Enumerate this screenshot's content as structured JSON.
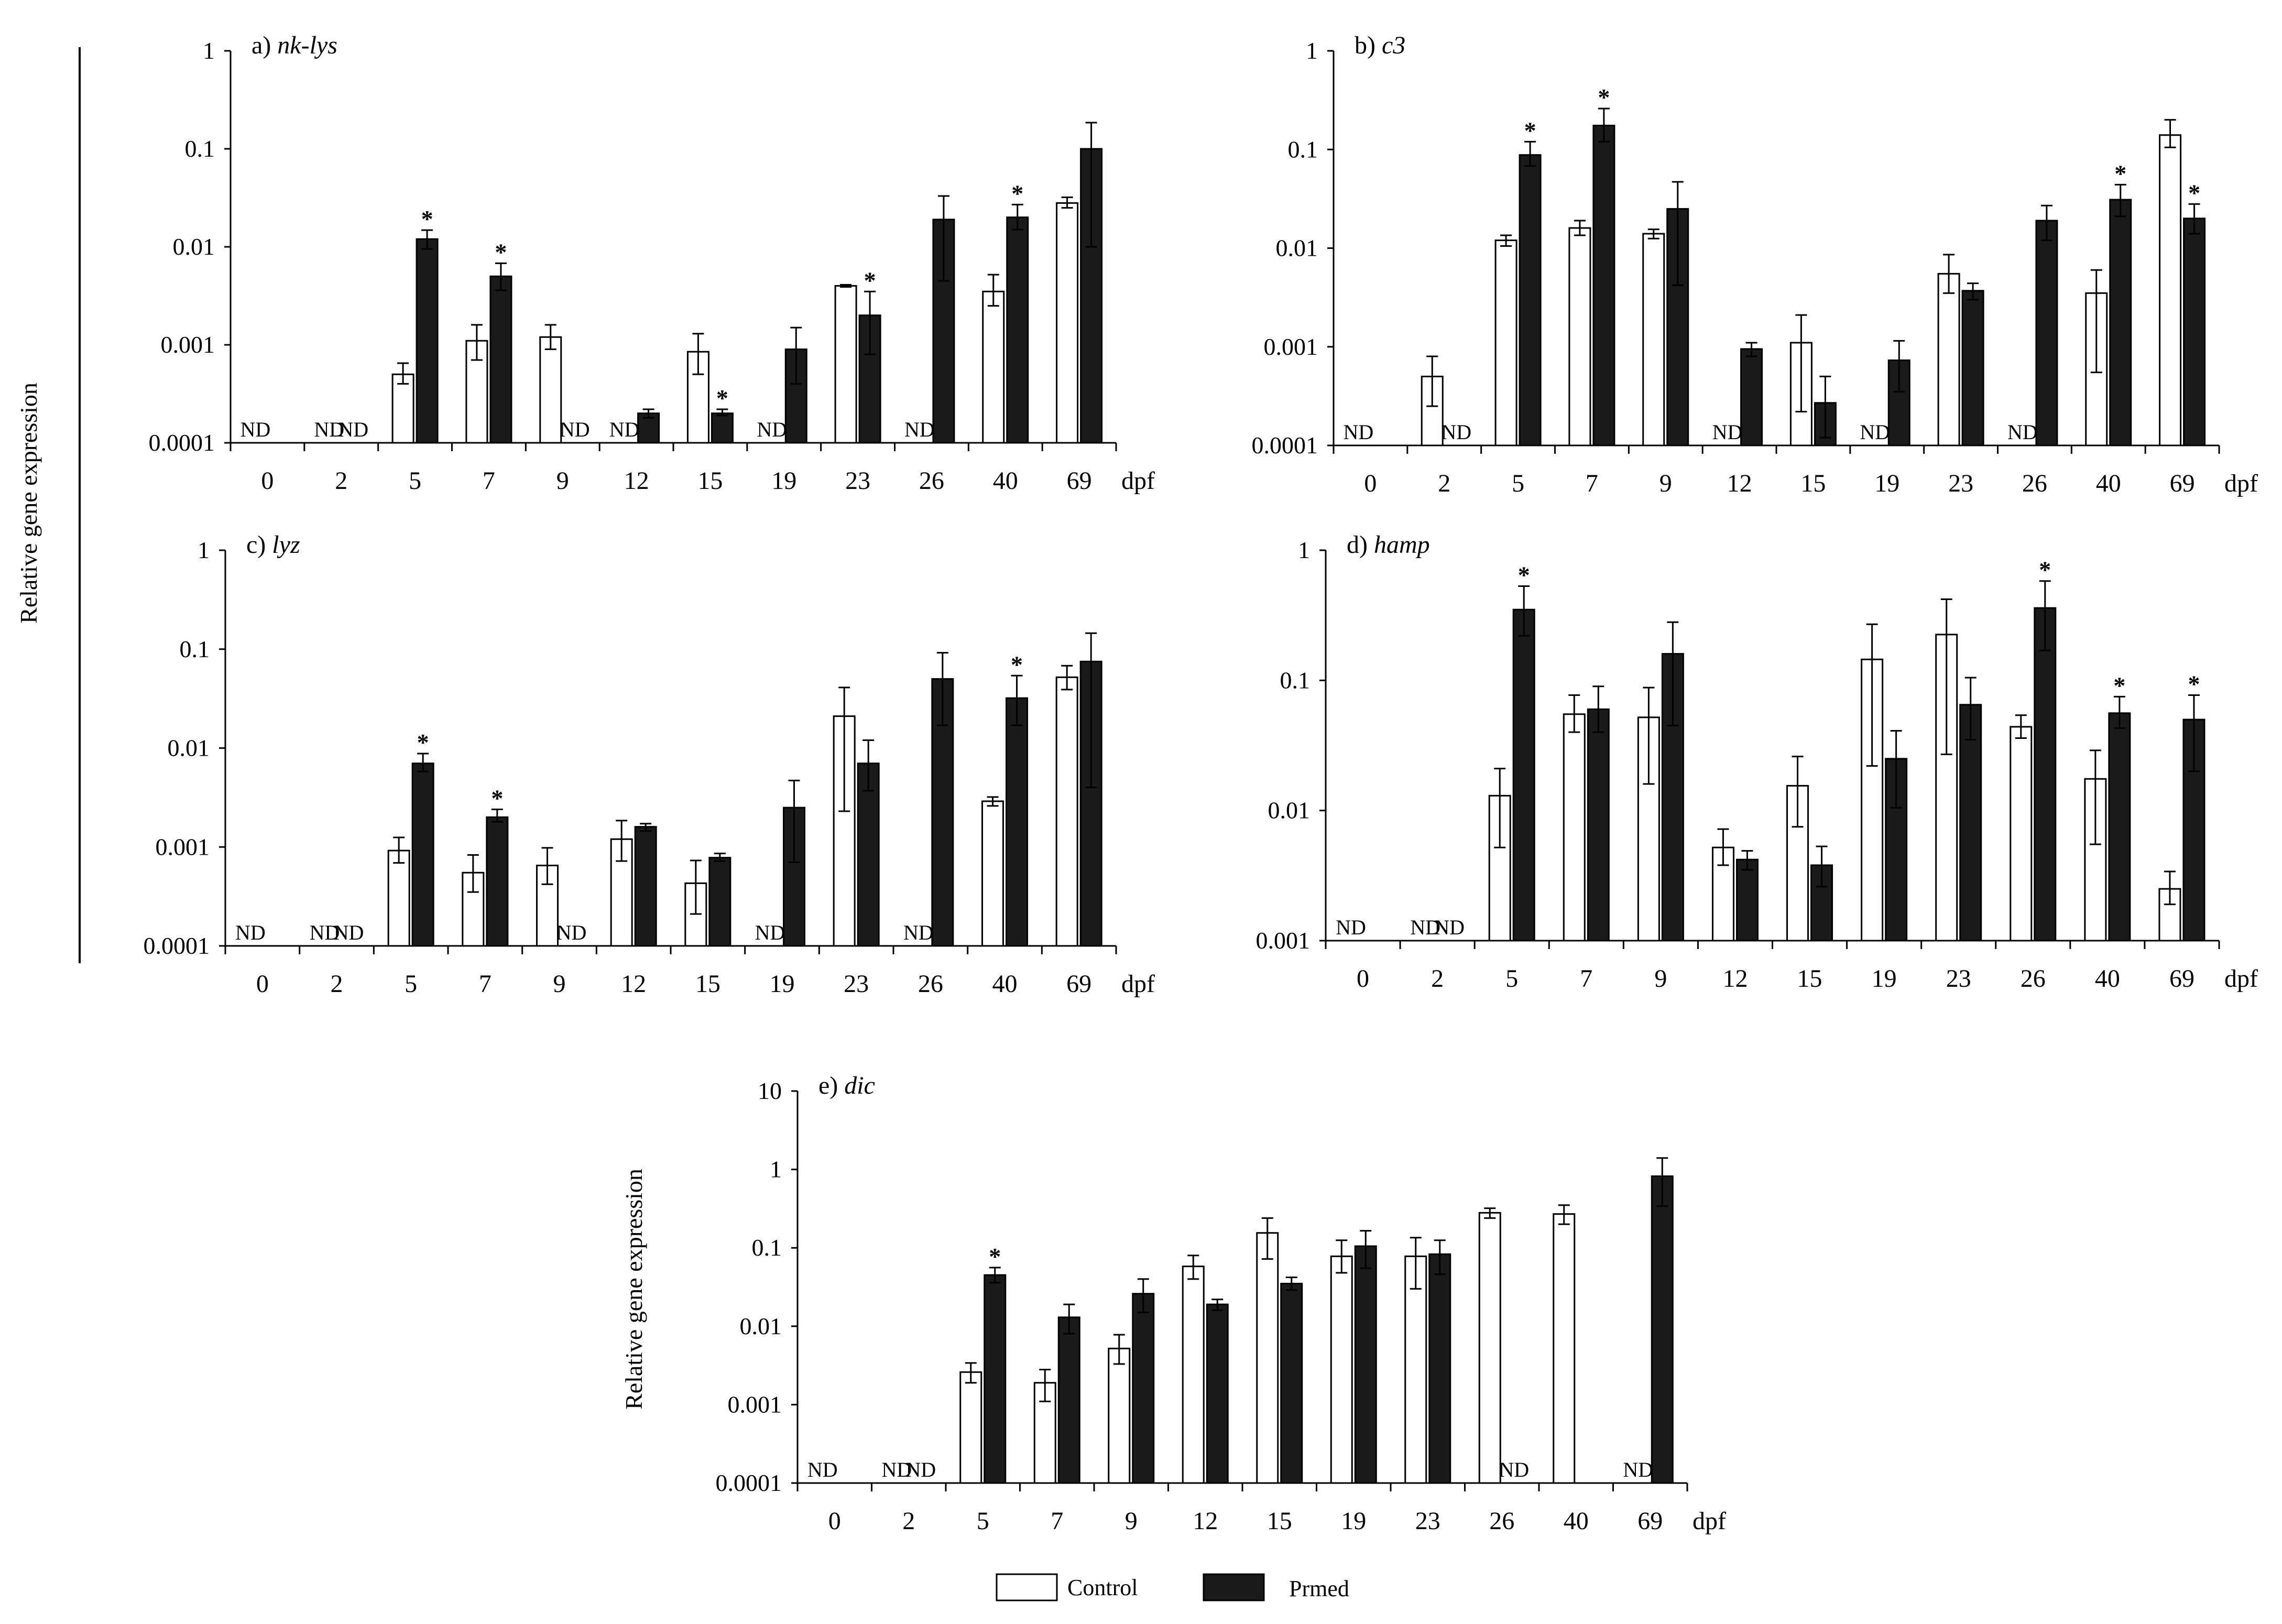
{
  "figure": {
    "y_axis_label": "Relative  gene  expression",
    "x_unit": "dpf",
    "not_detected": "ND",
    "sig_marker": "*",
    "legend": [
      {
        "label": "Control",
        "fill": "#ffffff"
      },
      {
        "label": "Prmed",
        "fill": "#1a1a1a"
      }
    ]
  },
  "chart_data": [
    {
      "type": "bar",
      "id": "a",
      "title_prefix": "a)",
      "title_gene": "nk-lys",
      "xlabel": "dpf",
      "ylabel": "Relative  gene  expression",
      "yscale": "log",
      "ylim": [
        0.0001,
        1
      ],
      "ytick_labels": [
        "0.0001",
        "0.001",
        "0.01",
        "0.1",
        "1"
      ],
      "categories": [
        "0",
        "2",
        "5",
        "7",
        "9",
        "12",
        "15",
        "19",
        "23",
        "26",
        "40",
        "69"
      ],
      "series": [
        {
          "name": "Control",
          "values": [
            null,
            null,
            0.0005,
            0.0011,
            0.0012,
            null,
            0.00085,
            null,
            0.004,
            null,
            0.0035,
            0.028
          ],
          "err_low": [
            null,
            null,
            0.0004,
            0.0007,
            0.0009,
            null,
            0.0005,
            null,
            0.0039,
            null,
            0.0025,
            0.025
          ],
          "err_high": [
            null,
            null,
            0.00065,
            0.0016,
            0.0016,
            null,
            0.0013,
            null,
            0.0041,
            null,
            0.0052,
            0.032
          ],
          "nd": [
            true,
            true,
            false,
            false,
            false,
            true,
            false,
            true,
            false,
            true,
            false,
            false
          ],
          "sig": [
            false,
            false,
            false,
            false,
            false,
            false,
            false,
            false,
            false,
            false,
            false,
            false
          ]
        },
        {
          "name": "Prmed",
          "values": [
            null,
            null,
            0.012,
            0.005,
            null,
            0.0002,
            0.0002,
            0.0009,
            0.002,
            0.019,
            0.02,
            0.1
          ],
          "err_low": [
            null,
            null,
            0.0095,
            0.0036,
            null,
            0.00018,
            0.00019,
            0.0004,
            0.0008,
            0.0045,
            0.015,
            0.01
          ],
          "err_high": [
            null,
            null,
            0.0148,
            0.0068,
            null,
            0.00022,
            0.00022,
            0.0015,
            0.0035,
            0.033,
            0.027,
            0.185
          ],
          "nd": [
            false,
            true,
            false,
            false,
            true,
            false,
            false,
            false,
            false,
            false,
            false,
            false
          ],
          "sig": [
            false,
            false,
            true,
            true,
            false,
            false,
            true,
            false,
            true,
            false,
            true,
            false
          ]
        }
      ]
    },
    {
      "type": "bar",
      "id": "b",
      "title_prefix": "b)",
      "title_gene": "c3",
      "xlabel": "dpf",
      "ylabel": "",
      "yscale": "log",
      "ylim": [
        0.0001,
        1
      ],
      "ytick_labels": [
        "0.0001",
        "0.001",
        "0.01",
        "0.1",
        "1"
      ],
      "categories": [
        "0",
        "2",
        "5",
        "7",
        "9",
        "12",
        "15",
        "19",
        "23",
        "26",
        "40",
        "69"
      ],
      "series": [
        {
          "name": "Control",
          "values": [
            null,
            0.0005,
            0.012,
            0.016,
            0.014,
            null,
            0.0011,
            null,
            0.0055,
            null,
            0.0035,
            0.14
          ],
          "err_low": [
            null,
            0.00025,
            0.0105,
            0.0135,
            0.0125,
            null,
            0.00022,
            null,
            0.0035,
            null,
            0.00055,
            0.105
          ],
          "err_high": [
            null,
            0.0008,
            0.0135,
            0.019,
            0.0155,
            null,
            0.0021,
            null,
            0.0086,
            null,
            0.006,
            0.2
          ],
          "nd": [
            true,
            false,
            false,
            false,
            false,
            true,
            false,
            true,
            false,
            true,
            false,
            false
          ],
          "sig": [
            false,
            false,
            false,
            false,
            false,
            false,
            false,
            false,
            false,
            false,
            false,
            false
          ]
        },
        {
          "name": "Prmed",
          "values": [
            null,
            null,
            0.088,
            0.175,
            0.025,
            0.00095,
            0.00027,
            0.00073,
            0.0037,
            0.019,
            0.031,
            0.02
          ],
          "err_low": [
            null,
            null,
            0.068,
            0.12,
            0.0042,
            0.0008,
            0.00012,
            0.00035,
            0.003,
            0.012,
            0.021,
            0.014
          ],
          "err_high": [
            null,
            null,
            0.12,
            0.26,
            0.047,
            0.0011,
            0.0005,
            0.00115,
            0.0044,
            0.027,
            0.044,
            0.028
          ],
          "nd": [
            false,
            true,
            false,
            false,
            false,
            false,
            false,
            false,
            false,
            false,
            false,
            false
          ],
          "sig": [
            false,
            false,
            true,
            true,
            false,
            false,
            false,
            false,
            false,
            false,
            true,
            true
          ]
        }
      ]
    },
    {
      "type": "bar",
      "id": "c",
      "title_prefix": "c)",
      "title_gene": "lyz",
      "xlabel": "dpf",
      "ylabel": "",
      "yscale": "log",
      "ylim": [
        0.0001,
        1
      ],
      "ytick_labels": [
        "0.0001",
        "0.001",
        "0.01",
        "0.1",
        "1"
      ],
      "categories": [
        "0",
        "2",
        "5",
        "7",
        "9",
        "12",
        "15",
        "19",
        "23",
        "26",
        "40",
        "69"
      ],
      "series": [
        {
          "name": "Control",
          "values": [
            null,
            null,
            0.00092,
            0.00055,
            0.00065,
            0.0012,
            0.00043,
            null,
            0.021,
            null,
            0.0029,
            0.052
          ],
          "err_low": [
            null,
            null,
            0.00069,
            0.00035,
            0.00042,
            0.00072,
            0.00021,
            null,
            0.0023,
            null,
            0.0026,
            0.039
          ],
          "err_high": [
            null,
            null,
            0.00125,
            0.00083,
            0.00098,
            0.00185,
            0.00073,
            null,
            0.041,
            null,
            0.0032,
            0.068
          ],
          "nd": [
            true,
            true,
            false,
            false,
            false,
            false,
            false,
            true,
            false,
            true,
            false,
            false
          ],
          "sig": [
            false,
            false,
            false,
            false,
            false,
            false,
            false,
            false,
            false,
            false,
            false,
            false
          ]
        },
        {
          "name": "Prmed",
          "values": [
            null,
            null,
            0.007,
            0.002,
            null,
            0.0016,
            0.00078,
            0.0025,
            0.007,
            0.05,
            0.032,
            0.075
          ],
          "err_low": [
            null,
            null,
            0.0058,
            0.0018,
            null,
            0.00145,
            0.00072,
            0.0007,
            0.0037,
            0.017,
            0.017,
            0.004
          ],
          "err_high": [
            null,
            null,
            0.0088,
            0.0024,
            null,
            0.00172,
            0.00086,
            0.0047,
            0.012,
            0.092,
            0.054,
            0.145
          ],
          "nd": [
            false,
            true,
            false,
            false,
            true,
            false,
            false,
            false,
            false,
            false,
            false,
            false
          ],
          "sig": [
            false,
            false,
            true,
            true,
            false,
            false,
            false,
            false,
            false,
            false,
            true,
            false
          ]
        }
      ]
    },
    {
      "type": "bar",
      "id": "d",
      "title_prefix": "d)",
      "title_gene": "hamp",
      "xlabel": "dpf",
      "ylabel": "",
      "yscale": "log",
      "ylim": [
        0.001,
        1
      ],
      "ytick_labels": [
        "0.001",
        "0.01",
        "0.1",
        "1"
      ],
      "categories": [
        "0",
        "2",
        "5",
        "7",
        "9",
        "12",
        "15",
        "19",
        "23",
        "26",
        "40",
        "69"
      ],
      "series": [
        {
          "name": "Control",
          "values": [
            null,
            null,
            0.013,
            0.055,
            0.052,
            0.0052,
            0.0155,
            0.145,
            0.225,
            0.044,
            0.0175,
            0.0025
          ],
          "err_low": [
            null,
            null,
            0.0052,
            0.04,
            0.016,
            0.0038,
            0.0075,
            0.022,
            0.027,
            0.036,
            0.0055,
            0.0019
          ],
          "err_high": [
            null,
            null,
            0.021,
            0.077,
            0.088,
            0.0072,
            0.026,
            0.27,
            0.42,
            0.054,
            0.029,
            0.0034
          ],
          "nd": [
            true,
            true,
            false,
            false,
            false,
            false,
            false,
            false,
            false,
            false,
            false,
            false
          ],
          "sig": [
            false,
            false,
            false,
            false,
            false,
            false,
            false,
            false,
            false,
            false,
            false,
            false
          ]
        },
        {
          "name": "Prmed",
          "values": [
            null,
            null,
            0.35,
            0.06,
            0.16,
            0.0042,
            0.0038,
            0.025,
            0.065,
            0.36,
            0.056,
            0.05
          ],
          "err_low": [
            null,
            null,
            0.22,
            0.04,
            0.045,
            0.0035,
            0.0026,
            0.0105,
            0.035,
            0.17,
            0.043,
            0.02
          ],
          "err_high": [
            null,
            null,
            0.53,
            0.09,
            0.28,
            0.0049,
            0.0053,
            0.041,
            0.105,
            0.58,
            0.075,
            0.077
          ],
          "nd": [
            false,
            true,
            false,
            false,
            false,
            false,
            false,
            false,
            false,
            false,
            false,
            false
          ],
          "sig": [
            false,
            false,
            true,
            false,
            false,
            false,
            false,
            false,
            false,
            true,
            true,
            true
          ]
        }
      ]
    },
    {
      "type": "bar",
      "id": "e",
      "title_prefix": "e)",
      "title_gene": "dic",
      "xlabel": "dpf",
      "ylabel": "Relative  gene  expression",
      "yscale": "log",
      "ylim": [
        0.0001,
        10
      ],
      "ytick_labels": [
        "0.0001",
        "0.001",
        "0.01",
        "0.1",
        "1",
        "10"
      ],
      "categories": [
        "0",
        "2",
        "5",
        "7",
        "9",
        "12",
        "15",
        "19",
        "23",
        "26",
        "40",
        "69"
      ],
      "series": [
        {
          "name": "Control",
          "values": [
            null,
            null,
            0.0026,
            0.0019,
            0.0052,
            0.058,
            0.155,
            0.078,
            0.078,
            0.28,
            0.27,
            null
          ],
          "err_low": [
            null,
            null,
            0.0019,
            0.0011,
            0.0033,
            0.04,
            0.072,
            0.048,
            0.03,
            0.24,
            0.2,
            null
          ],
          "err_high": [
            null,
            null,
            0.0034,
            0.0028,
            0.0078,
            0.08,
            0.24,
            0.125,
            0.135,
            0.32,
            0.35,
            null
          ],
          "nd": [
            true,
            true,
            false,
            false,
            false,
            false,
            false,
            false,
            false,
            false,
            false,
            true
          ],
          "sig": [
            false,
            false,
            false,
            false,
            false,
            false,
            false,
            false,
            false,
            false,
            false,
            false
          ]
        },
        {
          "name": "Prmed",
          "values": [
            null,
            null,
            0.045,
            0.013,
            0.026,
            0.019,
            0.035,
            0.105,
            0.083,
            null,
            null,
            0.82
          ],
          "err_low": [
            null,
            null,
            0.036,
            0.008,
            0.015,
            0.016,
            0.029,
            0.055,
            0.046,
            null,
            null,
            0.34
          ],
          "err_high": [
            null,
            null,
            0.056,
            0.019,
            0.04,
            0.022,
            0.042,
            0.165,
            0.125,
            null,
            null,
            1.4
          ],
          "nd": [
            false,
            true,
            false,
            false,
            false,
            false,
            false,
            false,
            false,
            true,
            false,
            false
          ],
          "sig": [
            false,
            false,
            true,
            false,
            false,
            false,
            false,
            false,
            false,
            false,
            false,
            false
          ]
        }
      ]
    }
  ]
}
